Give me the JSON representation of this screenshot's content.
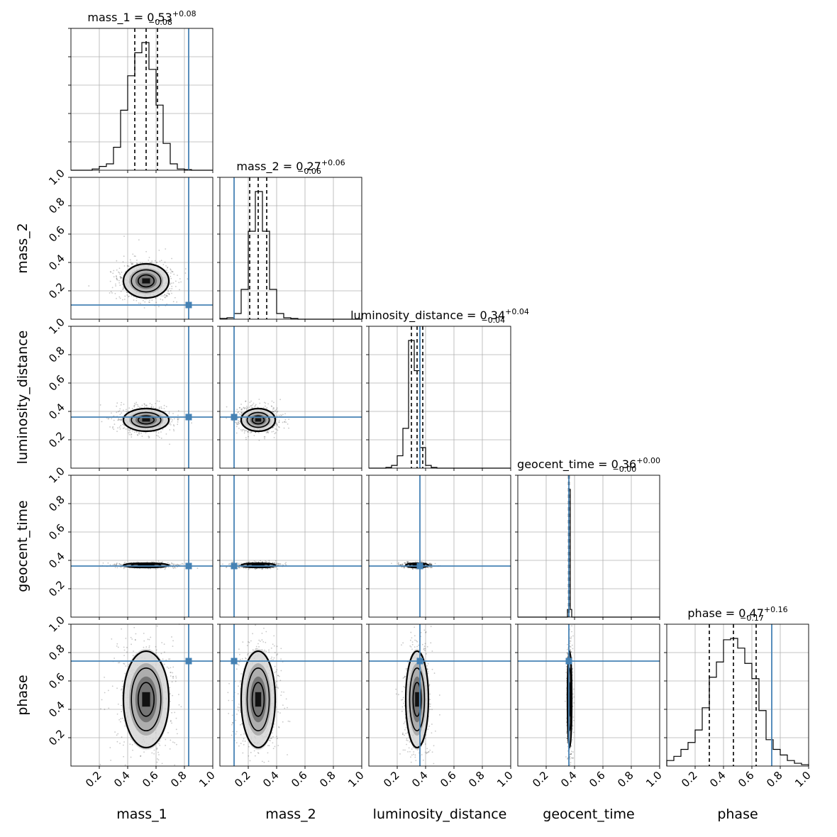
{
  "chart_data": {
    "type": "corner",
    "parameters": [
      "mass_1",
      "mass_2",
      "luminosity_distance",
      "geocent_time",
      "phase"
    ],
    "tick_labels": [
      "0.2",
      "0.4",
      "0.6",
      "0.8",
      "1.0"
    ],
    "tick_values": [
      0.2,
      0.4,
      0.6,
      0.8,
      1.0
    ],
    "axis_range": [
      0,
      1
    ],
    "grid": true,
    "truth_color": "#4682b4",
    "truths": {
      "mass_1": 0.83,
      "mass_2": 0.1,
      "luminosity_distance": 0.36,
      "geocent_time": 0.36,
      "phase": 0.74
    },
    "marginals": {
      "mass_1": {
        "title_prefix": "mass_1 = ",
        "median_text": "0.53",
        "plus_text": "+0.08",
        "minus_text": "−0.08",
        "median": 0.53,
        "lower": 0.45,
        "upper": 0.61,
        "bin_edges": [
          0.15,
          0.2,
          0.25,
          0.3,
          0.35,
          0.4,
          0.45,
          0.5,
          0.55,
          0.6,
          0.65,
          0.7,
          0.75,
          0.8,
          0.85
        ],
        "counts": [
          0.01,
          0.03,
          0.05,
          0.18,
          0.47,
          0.74,
          0.92,
          1.0,
          0.79,
          0.51,
          0.21,
          0.05,
          0.01,
          0.005
        ]
      },
      "mass_2": {
        "title_prefix": "mass_2 = ",
        "median_text": "0.27",
        "plus_text": "+0.06",
        "minus_text": "−0.06",
        "median": 0.27,
        "lower": 0.21,
        "upper": 0.33,
        "bin_edges": [
          0.0,
          0.05,
          0.1,
          0.15,
          0.2,
          0.25,
          0.3,
          0.35,
          0.4,
          0.45,
          0.5,
          0.55,
          0.6,
          0.65,
          0.7
        ],
        "counts": [
          0.005,
          0.01,
          0.04,
          0.21,
          0.62,
          0.9,
          0.62,
          0.21,
          0.04,
          0.01,
          0.005,
          0.0,
          0.0,
          0.0
        ]
      },
      "luminosity_distance": {
        "title_prefix": "luminosity_distance = ",
        "median_text": "0.34",
        "plus_text": "+0.04",
        "minus_text": "−0.04",
        "median": 0.34,
        "lower": 0.3,
        "upper": 0.38,
        "bin_edges": [
          0.12,
          0.16,
          0.2,
          0.24,
          0.28,
          0.32,
          0.36,
          0.4,
          0.44,
          0.48,
          0.52
        ],
        "counts": [
          0.005,
          0.02,
          0.09,
          0.29,
          0.93,
          0.71,
          0.15,
          0.02,
          0.005,
          0.0
        ]
      },
      "geocent_time": {
        "title_prefix": "geocent_time = ",
        "median_text": "0.36",
        "plus_text": "+0.00",
        "minus_text": "−0.00",
        "median": 0.36,
        "lower": 0.358,
        "upper": 0.362,
        "bin_edges": [
          0.35,
          0.36,
          0.37,
          0.38
        ],
        "counts": [
          0.06,
          1.0,
          0.06
        ]
      },
      "phase": {
        "title_prefix": "phase = ",
        "median_text": "0.47",
        "plus_text": "+0.16",
        "minus_text": "−0.17",
        "median": 0.47,
        "lower": 0.3,
        "upper": 0.63,
        "bin_edges": [
          0.0,
          0.05,
          0.1,
          0.15,
          0.2,
          0.25,
          0.3,
          0.35,
          0.4,
          0.45,
          0.5,
          0.55,
          0.6,
          0.65,
          0.7,
          0.75,
          0.8,
          0.85,
          0.9,
          0.95,
          1.0
        ],
        "counts": [
          0.04,
          0.07,
          0.12,
          0.17,
          0.26,
          0.42,
          0.64,
          0.75,
          0.91,
          0.92,
          0.85,
          0.74,
          0.63,
          0.4,
          0.19,
          0.12,
          0.08,
          0.04,
          0.02,
          0.01
        ]
      }
    },
    "joint": {
      "mass_1": {
        "center": 0.53,
        "sigma": 0.08
      },
      "mass_2": {
        "center": 0.27,
        "sigma": 0.06
      },
      "luminosity_distance": {
        "center": 0.34,
        "sigma": 0.04
      },
      "geocent_time": {
        "center": 0.365,
        "sigma": 0.003
      },
      "phase": {
        "center": 0.47,
        "sigma": 0.17
      }
    }
  }
}
